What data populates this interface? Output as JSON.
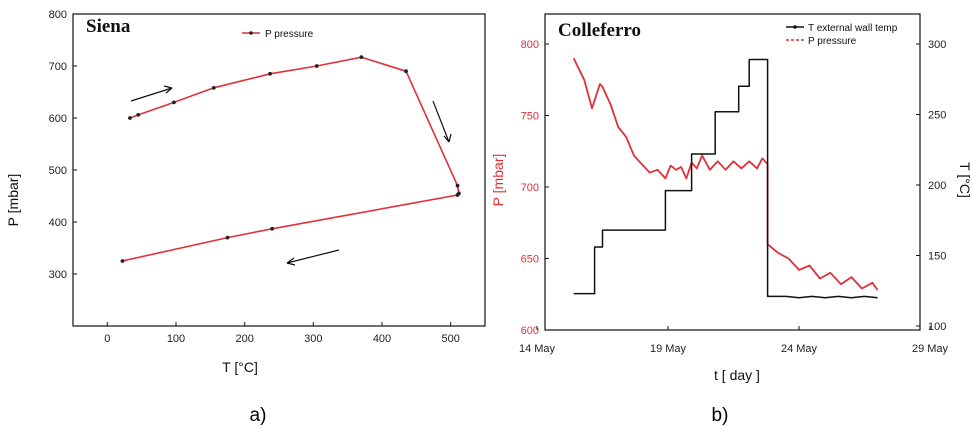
{
  "chart_data": [
    {
      "type": "line",
      "title": "Siena",
      "caption": "a)",
      "xlabel": "T   [°C]",
      "ylabel": "P  [mbar]",
      "xlim": [
        -50,
        550
      ],
      "ylim": [
        200,
        800
      ],
      "xticks": [
        0,
        100,
        200,
        300,
        400,
        500
      ],
      "yticks": [
        300,
        400,
        500,
        600,
        700,
        800
      ],
      "color": "#e0303a",
      "series": [
        {
          "name": "P  pressure",
          "x": [
            33,
            45,
            97,
            155,
            237,
            305,
            370,
            435,
            510,
            512,
            510,
            240,
            175,
            22
          ],
          "y": [
            600,
            606,
            630,
            658,
            685,
            700,
            717,
            690,
            470,
            455,
            452,
            387,
            370,
            325
          ]
        }
      ],
      "grid": false,
      "legend": "top-center"
    },
    {
      "type": "line",
      "title": "Colleferro",
      "caption": "b)",
      "xlabel": "t [ day ]",
      "ylabel": "P  [mbar]",
      "ylabel_right": "T  [°C]",
      "x_ticklabels": [
        "14 May",
        "19 May",
        "24 May",
        "29 May"
      ],
      "xticks": [
        14,
        19,
        24,
        29
      ],
      "xlim": [
        14,
        29
      ],
      "ylim": [
        600,
        800
      ],
      "yticks": [
        600,
        650,
        700,
        750,
        800
      ],
      "ylim_right": [
        100,
        310
      ],
      "yticks_right": [
        100,
        150,
        200,
        250,
        300
      ],
      "series": [
        {
          "name": "P  pressure",
          "axis": "left",
          "color": "#e0303a",
          "x": [
            15.4,
            15.8,
            16.1,
            16.4,
            16.5,
            16.8,
            17.1,
            17.4,
            17.7,
            18.0,
            18.3,
            18.6,
            18.9,
            19.1,
            19.3,
            19.5,
            19.7,
            19.9,
            20.1,
            20.3,
            20.6,
            20.9,
            21.2,
            21.5,
            21.8,
            22.1,
            22.4,
            22.6,
            22.8,
            22.8,
            23.2,
            23.6,
            24.0,
            24.4,
            24.8,
            25.2,
            25.6,
            26.0,
            26.4,
            26.8,
            27.0
          ],
          "y": [
            790,
            775,
            755,
            772,
            770,
            758,
            742,
            735,
            722,
            716,
            710,
            712,
            706,
            715,
            712,
            714,
            706,
            717,
            713,
            722,
            712,
            718,
            712,
            718,
            713,
            718,
            713,
            720,
            716,
            660,
            654,
            650,
            642,
            645,
            636,
            640,
            632,
            637,
            629,
            633,
            628
          ]
        },
        {
          "name": "T  external wall temp",
          "axis": "right",
          "color": "#111111",
          "x": [
            15.4,
            16.2,
            16.2,
            16.5,
            16.5,
            18.9,
            18.9,
            19.9,
            19.9,
            20.8,
            20.8,
            21.7,
            21.7,
            22.1,
            22.1,
            22.8,
            22.8,
            23.5,
            24.0,
            24.5,
            25.0,
            25.5,
            26.0,
            26.5,
            27.0
          ],
          "y": [
            123,
            123,
            156,
            156,
            168,
            168,
            196,
            196,
            222,
            222,
            252,
            252,
            270,
            270,
            289,
            289,
            121,
            121,
            120,
            121,
            120,
            121,
            120,
            121,
            120
          ]
        }
      ],
      "grid": false,
      "legend": "top-right"
    }
  ]
}
